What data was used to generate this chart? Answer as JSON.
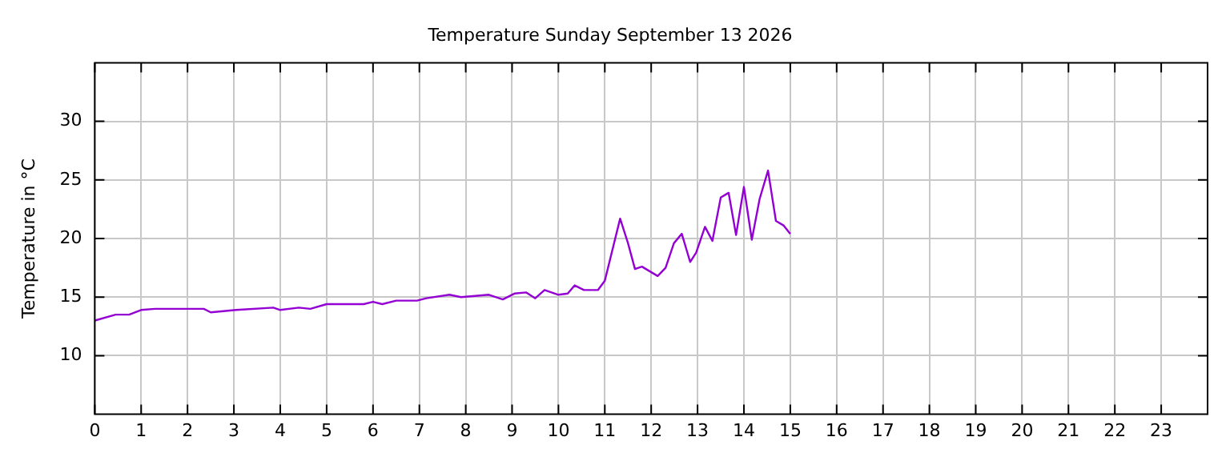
{
  "chart_data": {
    "type": "line",
    "title": "Temperature Sunday September 13 2026",
    "ylabel": "Temperature in °C",
    "x": [
      0,
      0.45,
      0.74,
      1,
      1.3,
      2,
      2.35,
      2.5,
      3.05,
      3.85,
      4.0,
      4.4,
      4.65,
      5.0,
      5.8,
      6.0,
      6.2,
      6.5,
      6.95,
      7.15,
      7.65,
      7.9,
      8.5,
      8.8,
      9.05,
      9.3,
      9.5,
      9.7,
      10.0,
      10.2,
      10.35,
      10.55,
      10.85,
      11.0,
      11.33,
      11.5,
      11.65,
      11.8,
      12.14,
      12.31,
      12.49,
      12.66,
      12.84,
      12.97,
      13.16,
      13.32,
      13.5,
      13.67,
      13.83,
      14.0,
      14.17,
      14.34,
      14.52,
      14.69,
      14.86,
      15.0
    ],
    "series": [
      {
        "color": "#9400d3",
        "values": [
          13.0,
          13.5,
          13.5,
          13.9,
          14.0,
          14.0,
          14.0,
          13.7,
          13.9,
          14.1,
          13.9,
          14.1,
          14.0,
          14.4,
          14.4,
          14.6,
          14.4,
          14.7,
          14.7,
          14.9,
          15.2,
          15.0,
          15.2,
          14.8,
          15.3,
          15.4,
          14.9,
          15.6,
          15.2,
          15.3,
          16.0,
          15.6,
          15.6,
          16.4,
          21.7,
          19.6,
          17.4,
          17.6,
          16.8,
          17.5,
          19.6,
          20.4,
          18.0,
          18.8,
          21.0,
          19.8,
          23.5,
          23.9,
          20.3,
          24.4,
          19.9,
          23.4,
          25.8,
          21.5,
          21.1,
          20.4
        ]
      }
    ],
    "xlim": [
      0,
      24
    ],
    "xticks": [
      0,
      1,
      2,
      3,
      4,
      5,
      6,
      7,
      8,
      9,
      10,
      11,
      12,
      13,
      14,
      15,
      16,
      17,
      18,
      19,
      20,
      21,
      22,
      23
    ],
    "ylim": [
      5,
      35
    ],
    "yticks": [
      10,
      15,
      20,
      25,
      30
    ],
    "grid": true,
    "legend": false,
    "marker": "none",
    "line_style": "solid"
  }
}
